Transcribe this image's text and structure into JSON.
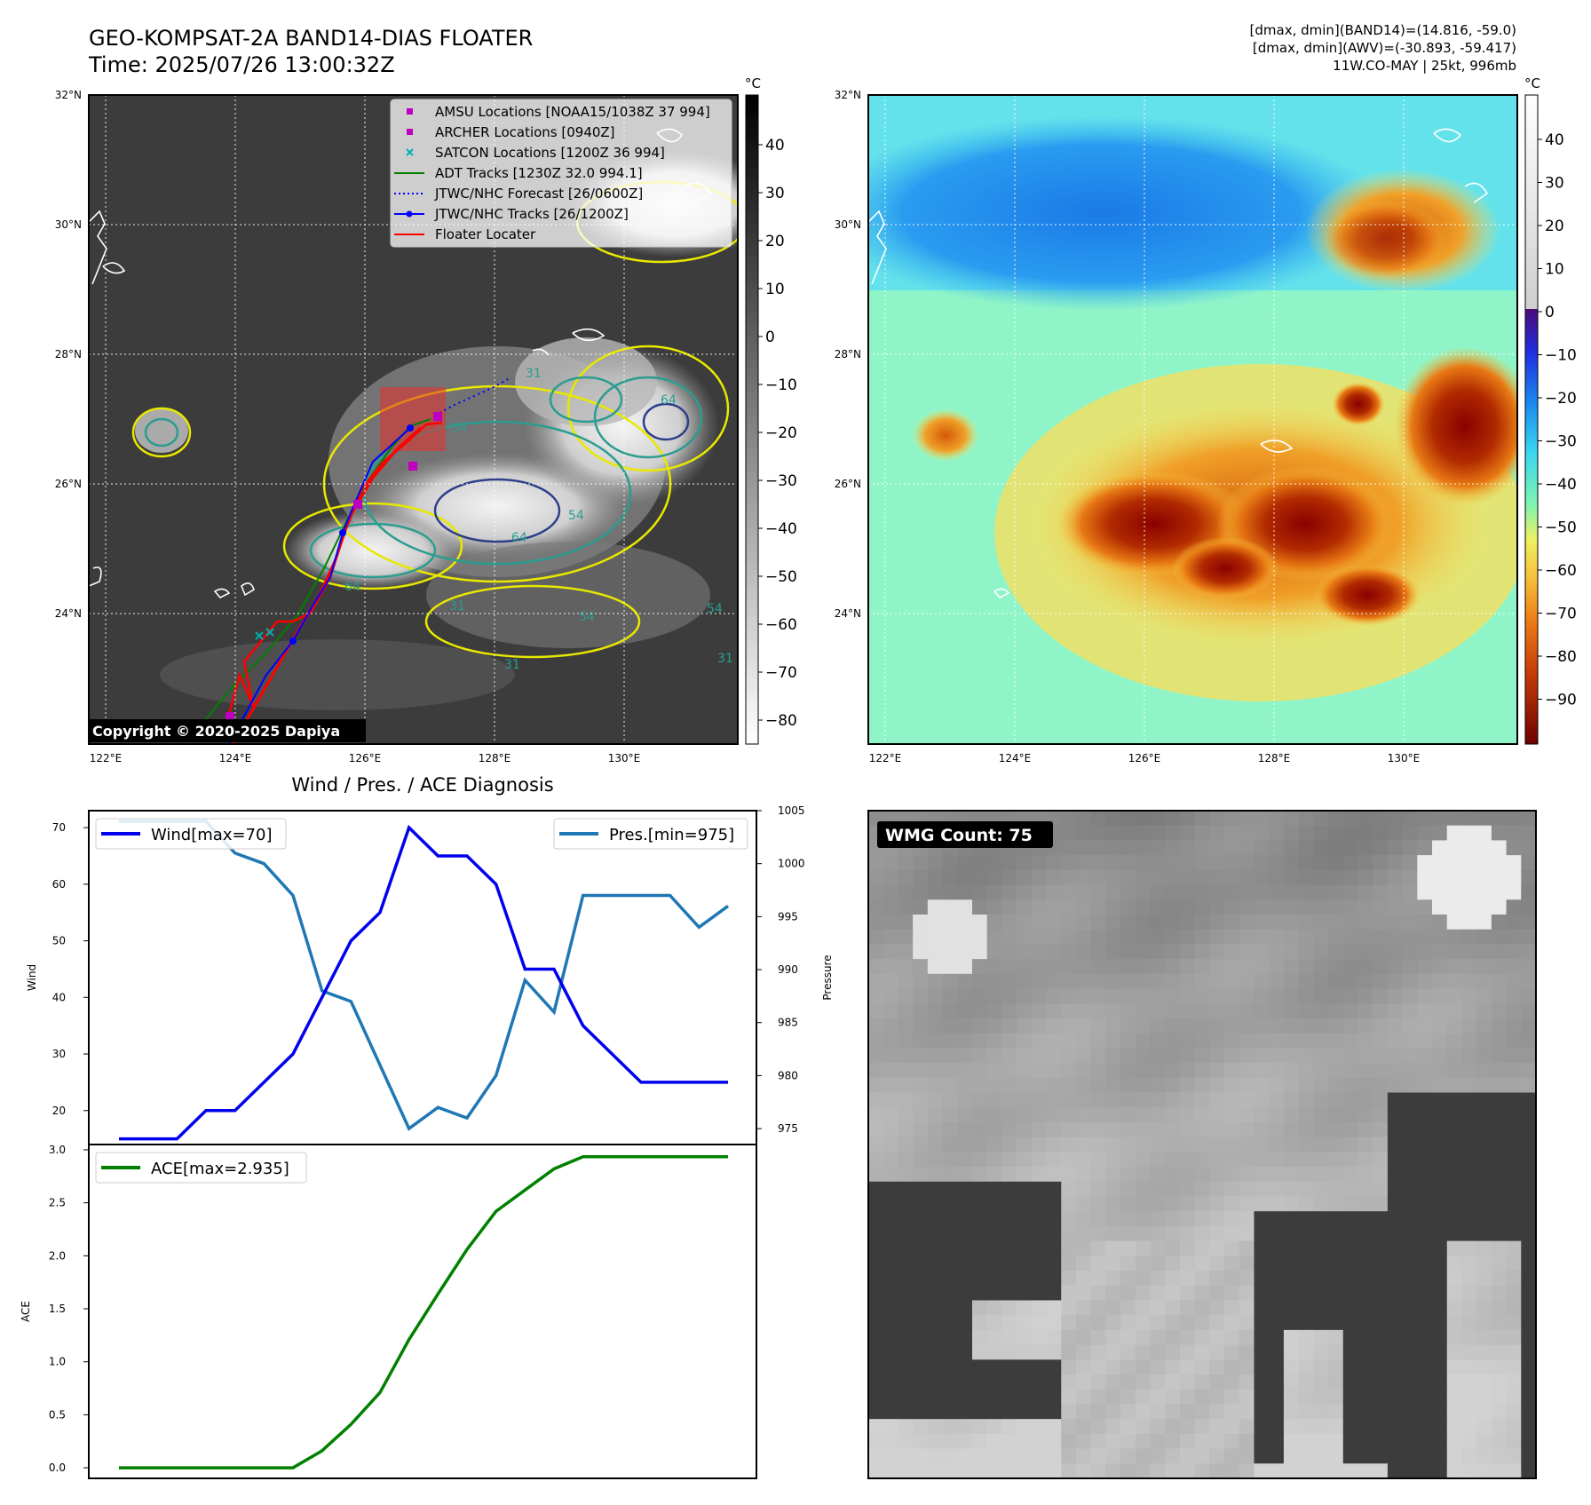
{
  "header": {
    "title_line1": "GEO-KOMPSAT-2A BAND14-DIAS FLOATER",
    "title_line2": "Time: 2025/07/26 13:00:32Z",
    "info_line1": "[dmax, dmin](BAND14)=(14.816, -59.0)",
    "info_line2": "[dmax, dmin](AWV)=(-30.893, -59.417)",
    "info_line3": "11W.CO-MAY | 25kt, 996mb"
  },
  "ir_map": {
    "lat_labels": [
      "32°N",
      "30°N",
      "28°N",
      "26°N",
      "24°N"
    ],
    "lon_labels": [
      "122°E",
      "124°E",
      "126°E",
      "128°E",
      "130°E"
    ],
    "colorbar_unit": "°C",
    "colorbar_ticks": [
      "40",
      "30",
      "20",
      "10",
      "0",
      "−10",
      "−20",
      "−30",
      "−40",
      "−50",
      "−60",
      "−70",
      "−80"
    ],
    "copyright": "Copyright © 2020-2025 Dapiya",
    "contour_labels": [
      "31",
      "54",
      "64",
      "54",
      "64",
      "31",
      "54",
      "64",
      "31",
      "54",
      "31"
    ],
    "legend": [
      {
        "label": "AMSU Locations [NOAA15/1038Z 37 994]",
        "color": "#c000c0",
        "marker": "square"
      },
      {
        "label": "ARCHER Locations [0940Z]",
        "color": "#c000c0",
        "marker": "square"
      },
      {
        "label": "SATCON Locations [1200Z 36 994]",
        "color": "#00b0b0",
        "marker": "x"
      },
      {
        "label": "ADT Tracks [1230Z 32.0 994.1]",
        "color": "#008000",
        "marker": "line"
      },
      {
        "label": "JTWC/NHC Forecast [26/0600Z]",
        "color": "#0000ff",
        "marker": "dotted"
      },
      {
        "label": "JTWC/NHC Tracks [26/1200Z]",
        "color": "#0000ff",
        "marker": "line-dot"
      },
      {
        "label": "Floater Locater",
        "color": "#ff0000",
        "marker": "line"
      }
    ]
  },
  "wv_map": {
    "lat_labels": [
      "32°N",
      "30°N",
      "28°N",
      "26°N",
      "24°N"
    ],
    "lon_labels": [
      "122°E",
      "124°E",
      "126°E",
      "128°E",
      "130°E"
    ],
    "colorbar_unit": "°C",
    "colorbar_ticks": [
      "40",
      "30",
      "20",
      "10",
      "0",
      "−10",
      "−20",
      "−30",
      "−40",
      "−50",
      "−60",
      "−70",
      "−80",
      "−90"
    ]
  },
  "wmg_panel": {
    "label": "WMG Count: 75"
  },
  "colors": {
    "wind": "#0000ee",
    "pressure": "#1f77b4",
    "ace": "#008000",
    "coast": "#ffffff",
    "contour_yellow": "#e8e800",
    "contour_teal": "#2a9d8f"
  },
  "chart_data": [
    {
      "type": "line",
      "title": "Wind / Pres. / ACE Diagnosis",
      "ylabel": "Wind",
      "ylabel_right": "Pressure",
      "ylim": [
        14,
        73
      ],
      "ylim_right": [
        973.5,
        1005
      ],
      "yticks": [
        20,
        30,
        40,
        50,
        60,
        70
      ],
      "yticks_right": [
        975,
        980,
        985,
        990,
        995,
        1000,
        1005
      ],
      "x": [
        0,
        1,
        2,
        3,
        4,
        5,
        6,
        7,
        8,
        9,
        10,
        11,
        12,
        13,
        14,
        15,
        16,
        17,
        18,
        19,
        20,
        21
      ],
      "series": [
        {
          "name": "Wind[max=70]",
          "axis": "left",
          "values": [
            15,
            15,
            15,
            20,
            20,
            25,
            30,
            40,
            50,
            55,
            70,
            65,
            65,
            60,
            45,
            45,
            35,
            30,
            25,
            25,
            25,
            25
          ]
        },
        {
          "name": "Pres.[min=975]",
          "axis": "right",
          "values": [
            1004,
            1004,
            1004,
            1004,
            1001,
            1000,
            997,
            988,
            987,
            981,
            975,
            977,
            976,
            980,
            989,
            986,
            997,
            997,
            997,
            997,
            994,
            996
          ]
        }
      ]
    },
    {
      "type": "line",
      "ylabel": "ACE",
      "ylim": [
        -0.1,
        3.05
      ],
      "yticks": [
        0.0,
        0.5,
        1.0,
        1.5,
        2.0,
        2.5,
        3.0
      ],
      "x": [
        0,
        1,
        2,
        3,
        4,
        5,
        6,
        7,
        8,
        9,
        10,
        11,
        12,
        13,
        14,
        15,
        16,
        17,
        18,
        19,
        20,
        21
      ],
      "series": [
        {
          "name": "ACE[max=2.935]",
          "values": [
            0,
            0,
            0,
            0,
            0,
            0,
            0,
            0.16,
            0.41,
            0.71,
            1.21,
            1.64,
            2.06,
            2.42,
            2.62,
            2.82,
            2.935,
            2.935,
            2.935,
            2.935,
            2.935,
            2.935
          ]
        }
      ]
    }
  ]
}
